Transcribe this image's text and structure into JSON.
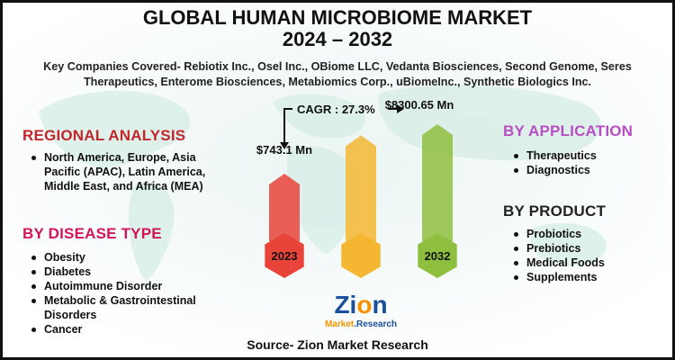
{
  "title_line1": "GLOBAL HUMAN MICROBIOME MARKET",
  "title_line2": "2024 – 2032",
  "companies": "Key Companies Covered- Rebiotix Inc., Osel Inc., OBiome LLC, Vedanta Biosciences, Second Genome, Seres Therapeutics, Enterome Biosciences, Metabiomics Corp., uBiomeInc., Synthetic Biologics Inc.",
  "regional": {
    "heading": "REGIONAL ANALYSIS",
    "items": [
      "North America, Europe, Asia Pacific (APAC), Latin America, Middle East, and Africa (MEA)"
    ]
  },
  "disease": {
    "heading": "BY DISEASE TYPE",
    "items": [
      "Obesity",
      "Diabetes",
      "Autoimmune Disorder",
      "Metabolic & Gastrointestinal Disorders",
      "Cancer"
    ]
  },
  "application": {
    "heading": "BY APPLICATION",
    "items": [
      "Therapeutics",
      "Diagnostics"
    ]
  },
  "product": {
    "heading": "BY PRODUCT",
    "items": [
      "Probiotics",
      "Prebiotics",
      "Medical Foods",
      "Supplements"
    ]
  },
  "chart_data": {
    "type": "bar",
    "categories": [
      "2023",
      "",
      "2032"
    ],
    "values": [
      743.1,
      null,
      8300.65
    ],
    "value_labels": [
      "$743.1 Mn",
      "",
      "$8300.65 Mn"
    ],
    "cagr_label": "CAGR : 27.3%",
    "colors": [
      "#e8443a",
      "#f5b731",
      "#8fbf3f"
    ]
  },
  "logo": {
    "word": "Zion",
    "sub1": "Market",
    "sub2": "Research"
  },
  "source": "Source- Zion Market Research",
  "colors": {
    "regional_heading": "#c0262c",
    "disease_heading": "#d4145a",
    "application_heading": "#b84dc4",
    "product_heading": "#222222",
    "logo_blue": "#1a4f9c",
    "logo_orange": "#f39200"
  }
}
